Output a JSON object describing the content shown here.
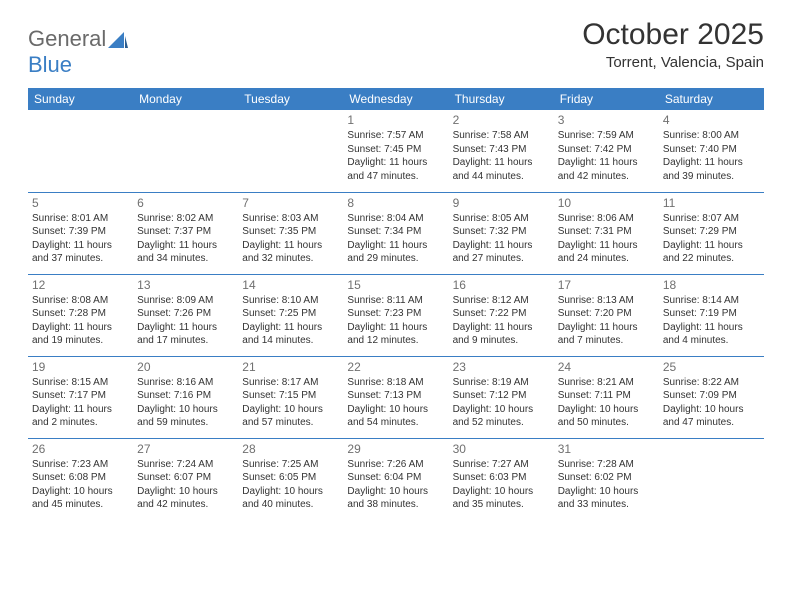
{
  "logo": {
    "word1": "General",
    "word2": "Blue",
    "text_color": "#6a6a6a",
    "accent_color": "#3a7ec4"
  },
  "title": "October 2025",
  "subtitle": "Torrent, Valencia, Spain",
  "header_bg": "#3a7ec4",
  "header_fg": "#ffffff",
  "border_color": "#3a7ec4",
  "cell_text_color": "#333333",
  "daynum_color": "#707070",
  "font_family": "Arial, Helvetica, sans-serif",
  "title_fontsize": 30,
  "subtitle_fontsize": 15,
  "header_fontsize": 12,
  "cell_fontsize": 10,
  "days": [
    "Sunday",
    "Monday",
    "Tuesday",
    "Wednesday",
    "Thursday",
    "Friday",
    "Saturday"
  ],
  "weeks": [
    [
      {
        "day": "",
        "sunrise": "",
        "sunset": "",
        "daylight1": "",
        "daylight2": "",
        "empty": true
      },
      {
        "day": "",
        "sunrise": "",
        "sunset": "",
        "daylight1": "",
        "daylight2": "",
        "empty": true
      },
      {
        "day": "",
        "sunrise": "",
        "sunset": "",
        "daylight1": "",
        "daylight2": "",
        "empty": true
      },
      {
        "day": "1",
        "sunrise": "Sunrise: 7:57 AM",
        "sunset": "Sunset: 7:45 PM",
        "daylight1": "Daylight: 11 hours",
        "daylight2": "and 47 minutes."
      },
      {
        "day": "2",
        "sunrise": "Sunrise: 7:58 AM",
        "sunset": "Sunset: 7:43 PM",
        "daylight1": "Daylight: 11 hours",
        "daylight2": "and 44 minutes."
      },
      {
        "day": "3",
        "sunrise": "Sunrise: 7:59 AM",
        "sunset": "Sunset: 7:42 PM",
        "daylight1": "Daylight: 11 hours",
        "daylight2": "and 42 minutes."
      },
      {
        "day": "4",
        "sunrise": "Sunrise: 8:00 AM",
        "sunset": "Sunset: 7:40 PM",
        "daylight1": "Daylight: 11 hours",
        "daylight2": "and 39 minutes."
      }
    ],
    [
      {
        "day": "5",
        "sunrise": "Sunrise: 8:01 AM",
        "sunset": "Sunset: 7:39 PM",
        "daylight1": "Daylight: 11 hours",
        "daylight2": "and 37 minutes."
      },
      {
        "day": "6",
        "sunrise": "Sunrise: 8:02 AM",
        "sunset": "Sunset: 7:37 PM",
        "daylight1": "Daylight: 11 hours",
        "daylight2": "and 34 minutes."
      },
      {
        "day": "7",
        "sunrise": "Sunrise: 8:03 AM",
        "sunset": "Sunset: 7:35 PM",
        "daylight1": "Daylight: 11 hours",
        "daylight2": "and 32 minutes."
      },
      {
        "day": "8",
        "sunrise": "Sunrise: 8:04 AM",
        "sunset": "Sunset: 7:34 PM",
        "daylight1": "Daylight: 11 hours",
        "daylight2": "and 29 minutes."
      },
      {
        "day": "9",
        "sunrise": "Sunrise: 8:05 AM",
        "sunset": "Sunset: 7:32 PM",
        "daylight1": "Daylight: 11 hours",
        "daylight2": "and 27 minutes."
      },
      {
        "day": "10",
        "sunrise": "Sunrise: 8:06 AM",
        "sunset": "Sunset: 7:31 PM",
        "daylight1": "Daylight: 11 hours",
        "daylight2": "and 24 minutes."
      },
      {
        "day": "11",
        "sunrise": "Sunrise: 8:07 AM",
        "sunset": "Sunset: 7:29 PM",
        "daylight1": "Daylight: 11 hours",
        "daylight2": "and 22 minutes."
      }
    ],
    [
      {
        "day": "12",
        "sunrise": "Sunrise: 8:08 AM",
        "sunset": "Sunset: 7:28 PM",
        "daylight1": "Daylight: 11 hours",
        "daylight2": "and 19 minutes."
      },
      {
        "day": "13",
        "sunrise": "Sunrise: 8:09 AM",
        "sunset": "Sunset: 7:26 PM",
        "daylight1": "Daylight: 11 hours",
        "daylight2": "and 17 minutes."
      },
      {
        "day": "14",
        "sunrise": "Sunrise: 8:10 AM",
        "sunset": "Sunset: 7:25 PM",
        "daylight1": "Daylight: 11 hours",
        "daylight2": "and 14 minutes."
      },
      {
        "day": "15",
        "sunrise": "Sunrise: 8:11 AM",
        "sunset": "Sunset: 7:23 PM",
        "daylight1": "Daylight: 11 hours",
        "daylight2": "and 12 minutes."
      },
      {
        "day": "16",
        "sunrise": "Sunrise: 8:12 AM",
        "sunset": "Sunset: 7:22 PM",
        "daylight1": "Daylight: 11 hours",
        "daylight2": "and 9 minutes."
      },
      {
        "day": "17",
        "sunrise": "Sunrise: 8:13 AM",
        "sunset": "Sunset: 7:20 PM",
        "daylight1": "Daylight: 11 hours",
        "daylight2": "and 7 minutes."
      },
      {
        "day": "18",
        "sunrise": "Sunrise: 8:14 AM",
        "sunset": "Sunset: 7:19 PM",
        "daylight1": "Daylight: 11 hours",
        "daylight2": "and 4 minutes."
      }
    ],
    [
      {
        "day": "19",
        "sunrise": "Sunrise: 8:15 AM",
        "sunset": "Sunset: 7:17 PM",
        "daylight1": "Daylight: 11 hours",
        "daylight2": "and 2 minutes."
      },
      {
        "day": "20",
        "sunrise": "Sunrise: 8:16 AM",
        "sunset": "Sunset: 7:16 PM",
        "daylight1": "Daylight: 10 hours",
        "daylight2": "and 59 minutes."
      },
      {
        "day": "21",
        "sunrise": "Sunrise: 8:17 AM",
        "sunset": "Sunset: 7:15 PM",
        "daylight1": "Daylight: 10 hours",
        "daylight2": "and 57 minutes."
      },
      {
        "day": "22",
        "sunrise": "Sunrise: 8:18 AM",
        "sunset": "Sunset: 7:13 PM",
        "daylight1": "Daylight: 10 hours",
        "daylight2": "and 54 minutes."
      },
      {
        "day": "23",
        "sunrise": "Sunrise: 8:19 AM",
        "sunset": "Sunset: 7:12 PM",
        "daylight1": "Daylight: 10 hours",
        "daylight2": "and 52 minutes."
      },
      {
        "day": "24",
        "sunrise": "Sunrise: 8:21 AM",
        "sunset": "Sunset: 7:11 PM",
        "daylight1": "Daylight: 10 hours",
        "daylight2": "and 50 minutes."
      },
      {
        "day": "25",
        "sunrise": "Sunrise: 8:22 AM",
        "sunset": "Sunset: 7:09 PM",
        "daylight1": "Daylight: 10 hours",
        "daylight2": "and 47 minutes."
      }
    ],
    [
      {
        "day": "26",
        "sunrise": "Sunrise: 7:23 AM",
        "sunset": "Sunset: 6:08 PM",
        "daylight1": "Daylight: 10 hours",
        "daylight2": "and 45 minutes."
      },
      {
        "day": "27",
        "sunrise": "Sunrise: 7:24 AM",
        "sunset": "Sunset: 6:07 PM",
        "daylight1": "Daylight: 10 hours",
        "daylight2": "and 42 minutes."
      },
      {
        "day": "28",
        "sunrise": "Sunrise: 7:25 AM",
        "sunset": "Sunset: 6:05 PM",
        "daylight1": "Daylight: 10 hours",
        "daylight2": "and 40 minutes."
      },
      {
        "day": "29",
        "sunrise": "Sunrise: 7:26 AM",
        "sunset": "Sunset: 6:04 PM",
        "daylight1": "Daylight: 10 hours",
        "daylight2": "and 38 minutes."
      },
      {
        "day": "30",
        "sunrise": "Sunrise: 7:27 AM",
        "sunset": "Sunset: 6:03 PM",
        "daylight1": "Daylight: 10 hours",
        "daylight2": "and 35 minutes."
      },
      {
        "day": "31",
        "sunrise": "Sunrise: 7:28 AM",
        "sunset": "Sunset: 6:02 PM",
        "daylight1": "Daylight: 10 hours",
        "daylight2": "and 33 minutes."
      },
      {
        "day": "",
        "sunrise": "",
        "sunset": "",
        "daylight1": "",
        "daylight2": "",
        "empty": true
      }
    ]
  ]
}
